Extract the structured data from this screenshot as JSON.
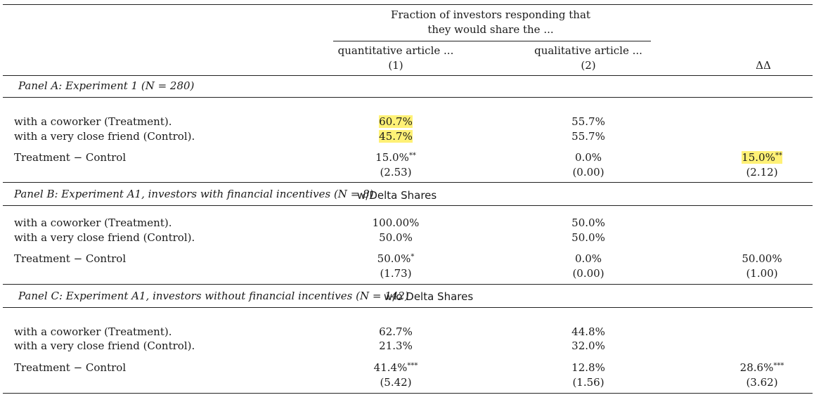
{
  "header": {
    "group_line1": "Fraction of investors responding that",
    "group_line2": "they would share the ...",
    "col1_label": "quantitative article ...",
    "col1_num": "(1)",
    "col2_label": "qualitative article ...",
    "col2_num": "(2)",
    "col3_label": "ΔΔ"
  },
  "panels": [
    {
      "title": "Panel A: Experiment 1 (N = 280)",
      "note": "",
      "treat_label": "with a coworker (Treatment).",
      "control_label": "with a very close friend (Control).",
      "diff_label": "Treatment − Control",
      "treat": [
        "60.7%",
        "55.7%"
      ],
      "control": [
        "45.7%",
        "55.7%"
      ],
      "diff": [
        "15.0%",
        "0.0%",
        "15.0%"
      ],
      "diff_stars": [
        "**",
        "",
        "**"
      ],
      "stat": [
        "(2.53)",
        "(0.00)",
        "(2.12)"
      ]
    },
    {
      "title": "Panel B: Experiment A1, investors with financial incentives (N = 8)",
      "note": "w/Delta Shares",
      "treat_label": "with a coworker (Treatment).",
      "control_label": "with a very close friend (Control).",
      "diff_label": "Treatment − Control",
      "treat": [
        "100.00%",
        "50.0%"
      ],
      "control": [
        "50.0%",
        "50.0%"
      ],
      "diff": [
        "50.0%",
        "0.0%",
        "50.00%"
      ],
      "diff_stars": [
        "*",
        "",
        ""
      ],
      "stat": [
        "(1.73)",
        "(0.00)",
        "(1.00)"
      ]
    },
    {
      "title": "Panel C: Experiment A1, investors without financial incentives (N = 142)",
      "note": "w/o Delta Shares",
      "treat_label": "with a coworker (Treatment).",
      "control_label": "with a very close friend (Control).",
      "diff_label": "Treatment − Control",
      "treat": [
        "62.7%",
        "44.8%"
      ],
      "control": [
        "21.3%",
        "32.0%"
      ],
      "diff": [
        "41.4%",
        "12.8%",
        "28.6%"
      ],
      "diff_stars": [
        "***",
        "",
        "***"
      ],
      "stat": [
        "(5.42)",
        "(1.56)",
        "(3.62)"
      ]
    }
  ]
}
